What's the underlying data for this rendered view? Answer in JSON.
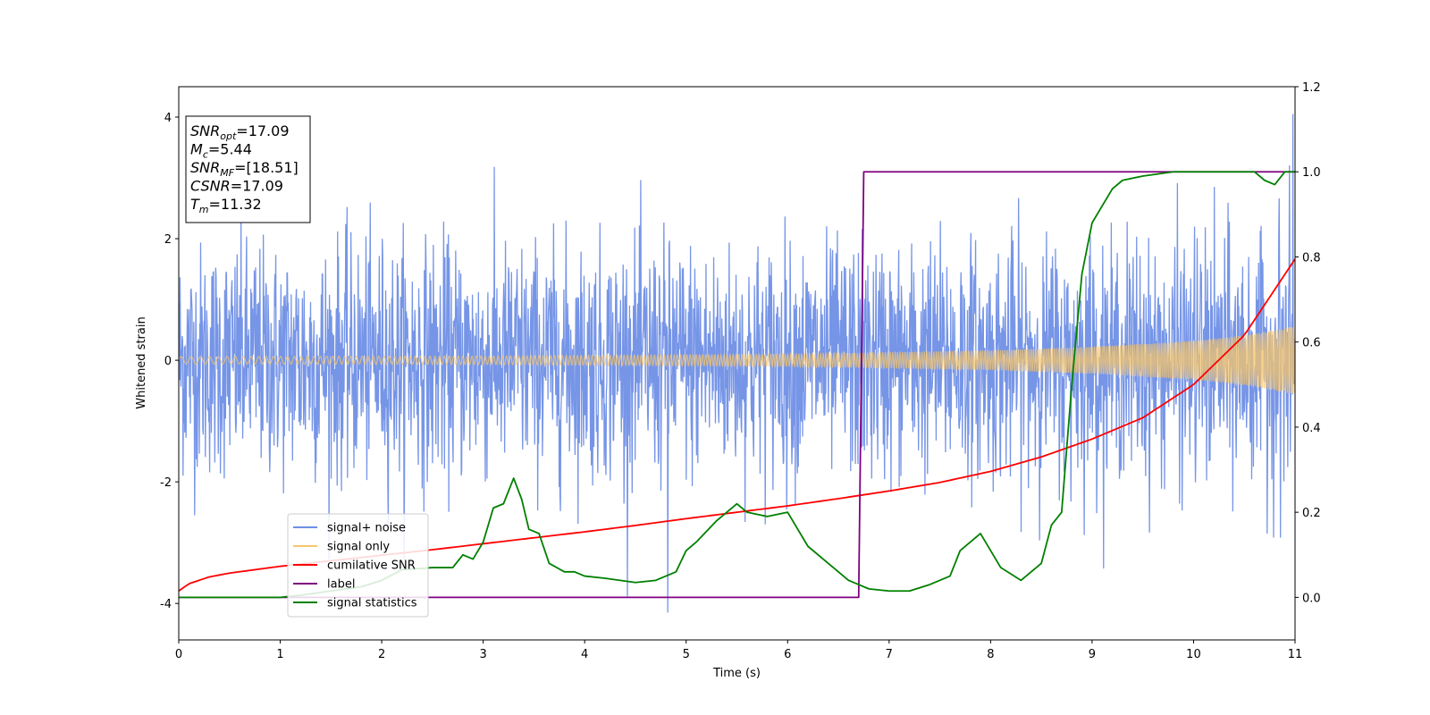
{
  "chart_data": {
    "type": "line",
    "xlabel": "Time (s)",
    "ylabel": "Whitened strain",
    "xlim": [
      0,
      11
    ],
    "ylim": [
      -4.6,
      4.5
    ],
    "y2lim": [
      -0.1,
      1.2
    ],
    "xticks": [
      "0",
      "1",
      "2",
      "3",
      "4",
      "5",
      "6",
      "7",
      "8",
      "9",
      "10",
      "11"
    ],
    "yticks": [
      "-4",
      "-2",
      "0",
      "2",
      "4"
    ],
    "y2ticks": [
      "0.0",
      "0.2",
      "0.4",
      "0.6",
      "0.8",
      "1.0",
      "1.2"
    ],
    "legend_position": "lower-left",
    "series": [
      {
        "name": "signal+ noise",
        "color": "#6f8fe6",
        "axis": "left",
        "description_values": {
          "noise_sigma": 0.95,
          "spike_max": 4.05,
          "spike_min": -4.15,
          "spike_min_x": 4.82
        }
      },
      {
        "name": "signal only",
        "color": "#f7c56b",
        "axis": "left",
        "envelope": {
          "x": [
            0,
            3,
            6,
            8,
            9,
            10,
            10.5,
            11
          ],
          "amplitude": [
            0.06,
            0.07,
            0.1,
            0.16,
            0.22,
            0.32,
            0.41,
            0.56
          ]
        }
      },
      {
        "name": "cumilative SNR",
        "color": "#ff0000",
        "axis": "right",
        "x": [
          0,
          0.1,
          0.3,
          0.5,
          1,
          1.5,
          2,
          2.5,
          3,
          3.5,
          4,
          4.5,
          5,
          5.5,
          6,
          6.5,
          7,
          7.5,
          8,
          8.5,
          9,
          9.5,
          10,
          10.5,
          11
        ],
        "y": [
          0.015,
          0.032,
          0.048,
          0.057,
          0.073,
          0.086,
          0.099,
          0.112,
          0.126,
          0.14,
          0.154,
          0.169,
          0.185,
          0.2,
          0.215,
          0.232,
          0.25,
          0.27,
          0.296,
          0.33,
          0.372,
          0.422,
          0.5,
          0.616,
          0.795
        ]
      },
      {
        "name": "label",
        "color": "#800080",
        "axis": "right",
        "x": [
          0,
          6.7,
          6.75,
          11
        ],
        "y": [
          0,
          0,
          1,
          1
        ]
      },
      {
        "name": "signal statistics",
        "color": "#008000",
        "axis": "right",
        "x": [
          0,
          0.5,
          1,
          1.2,
          1.5,
          1.8,
          2.0,
          2.2,
          2.5,
          2.7,
          2.8,
          2.9,
          3.0,
          3.1,
          3.2,
          3.3,
          3.38,
          3.45,
          3.55,
          3.65,
          3.8,
          3.9,
          4.0,
          4.2,
          4.5,
          4.7,
          4.9,
          5.0,
          5.1,
          5.3,
          5.5,
          5.6,
          5.8,
          6.0,
          6.2,
          6.4,
          6.6,
          6.7,
          6.8,
          7.0,
          7.2,
          7.4,
          7.6,
          7.7,
          7.9,
          8.1,
          8.3,
          8.5,
          8.6,
          8.7,
          8.8,
          8.9,
          9.0,
          9.1,
          9.2,
          9.3,
          9.5,
          9.8,
          10.0,
          10.3,
          10.6,
          10.7,
          10.8,
          10.9,
          11.0
        ],
        "y": [
          0.0,
          0.0,
          0.0,
          0.005,
          0.015,
          0.025,
          0.04,
          0.065,
          0.07,
          0.07,
          0.1,
          0.09,
          0.13,
          0.21,
          0.22,
          0.28,
          0.23,
          0.16,
          0.15,
          0.08,
          0.06,
          0.06,
          0.05,
          0.045,
          0.035,
          0.04,
          0.06,
          0.11,
          0.13,
          0.18,
          0.22,
          0.2,
          0.19,
          0.2,
          0.12,
          0.08,
          0.04,
          0.03,
          0.02,
          0.015,
          0.015,
          0.03,
          0.05,
          0.11,
          0.15,
          0.07,
          0.04,
          0.08,
          0.17,
          0.2,
          0.5,
          0.76,
          0.88,
          0.92,
          0.96,
          0.98,
          0.99,
          1.0,
          1.0,
          1.0,
          1.0,
          0.98,
          0.97,
          1.0,
          1.0
        ]
      }
    ],
    "annotation": {
      "lines": [
        {
          "base": "SNR",
          "sub": "opt",
          "rest": "=17.09"
        },
        {
          "base": "M",
          "sub": "c",
          "rest": "=5.44"
        },
        {
          "base": "SNR",
          "sub": "MF",
          "rest": "=[18.51]"
        },
        {
          "base": "CSNR",
          "sub": "",
          "rest": "=17.09"
        },
        {
          "base": "T",
          "sub": "m",
          "rest": "=11.32"
        }
      ]
    }
  }
}
